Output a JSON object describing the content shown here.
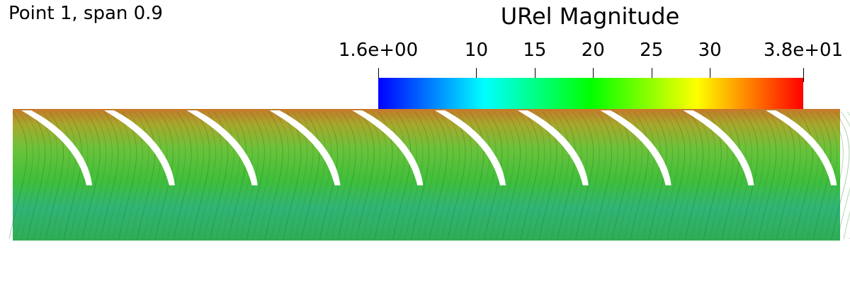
{
  "title": "Point 1, span 0.9",
  "colorbar": {
    "title": "URel Magnitude",
    "min": 1.6,
    "max": 38,
    "tick_labels": [
      "1.6e+00",
      "10",
      "15",
      "20",
      "25",
      "30",
      "3.8e+01"
    ],
    "tick_values": [
      1.6,
      10,
      15,
      20,
      25,
      30,
      38
    ],
    "colormap": [
      "#0000ff",
      "#00ffff",
      "#00ff00",
      "#ffff00",
      "#ff0000"
    ]
  },
  "field": {
    "blade_count": 10,
    "colors": {
      "top_band": "#c8782a",
      "mid_band": "#3fbf3c",
      "low_band": "#2eb07e",
      "streak": "#1f7a1f",
      "blade": "#ffffff"
    }
  }
}
